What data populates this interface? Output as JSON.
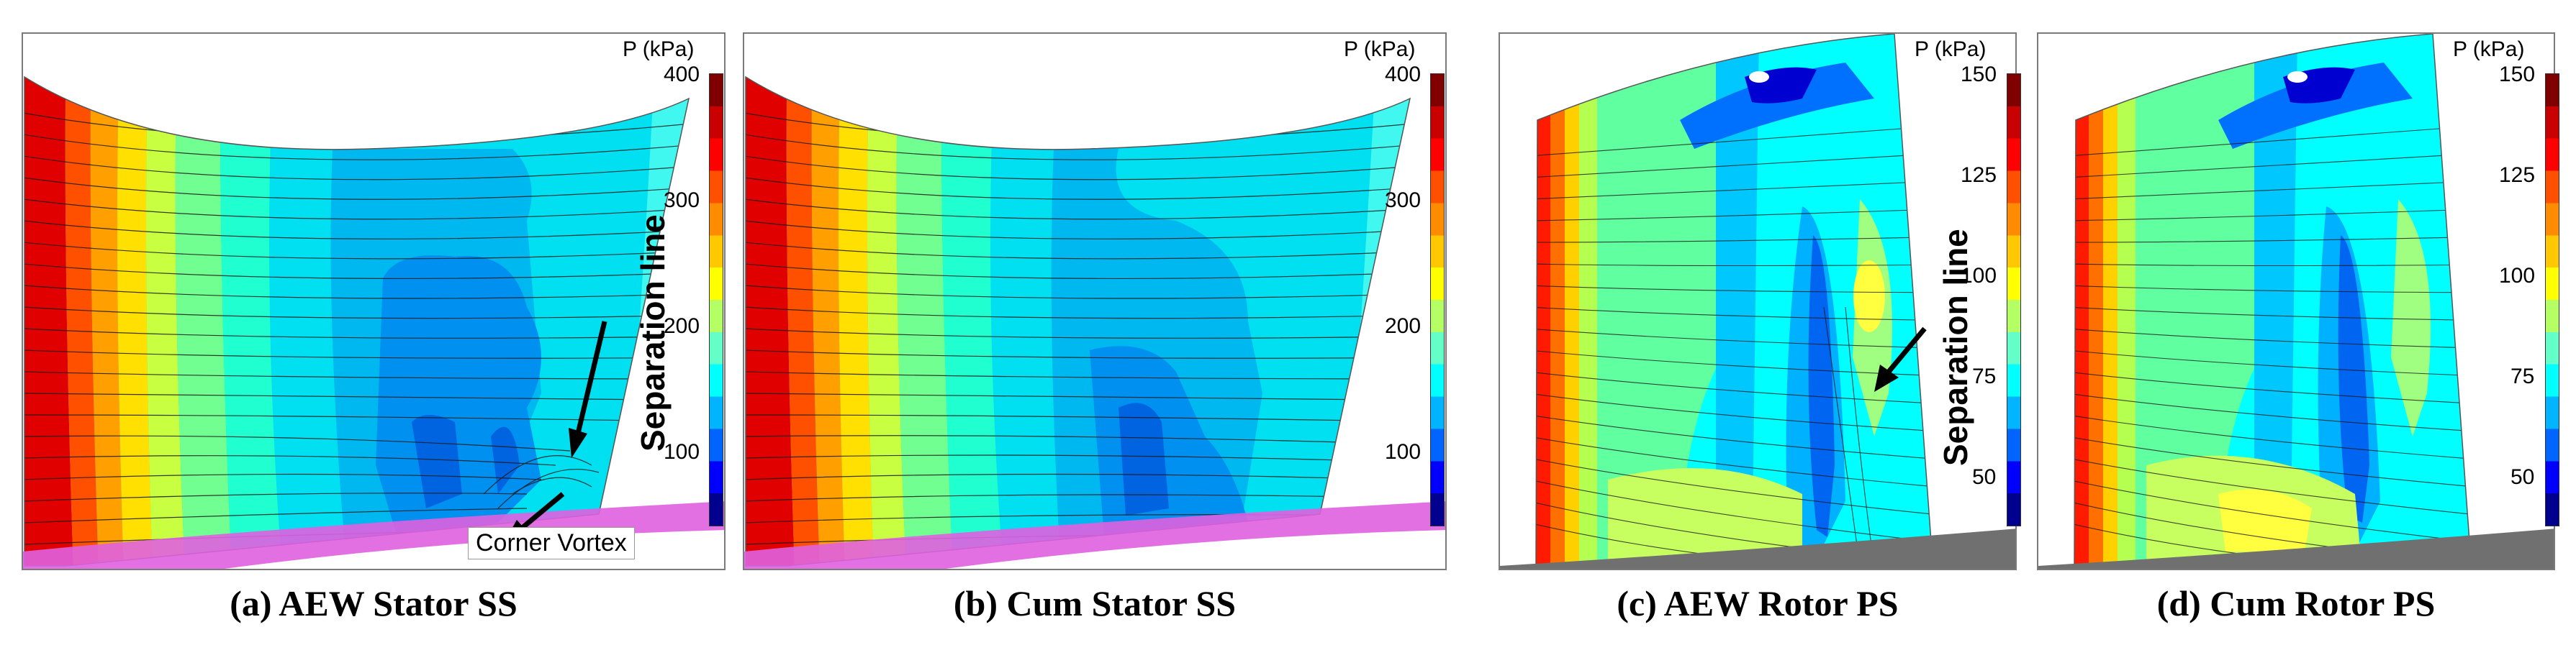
{
  "colorbar_colors": [
    "#00008f",
    "#0000ff",
    "#0064ff",
    "#00b4ff",
    "#00ffff",
    "#64ffc8",
    "#b4ff64",
    "#ffff00",
    "#ffc800",
    "#ff8c00",
    "#ff5000",
    "#ff0000",
    "#c80000",
    "#800000"
  ],
  "panels": [
    {
      "id": "a",
      "caption": "(a) AEW Stator SS",
      "colorbar_title": "P (kPa)",
      "ticks": [
        "400",
        "300",
        "200",
        "100"
      ],
      "annotations": {
        "separation": "Separation line",
        "vortex": "Corner Vortex"
      }
    },
    {
      "id": "b",
      "caption": "(b) Cum Stator SS",
      "colorbar_title": "P (kPa)",
      "ticks": [
        "400",
        "300",
        "200",
        "100"
      ]
    },
    {
      "id": "c",
      "caption": "(c) AEW Rotor PS",
      "colorbar_title": "P (kPa)",
      "ticks": [
        "150",
        "125",
        "100",
        "75",
        "50"
      ],
      "annotations": {
        "separation": "Separation line"
      }
    },
    {
      "id": "d",
      "caption": "(d) Cum Rotor PS",
      "colorbar_title": "P (kPa)",
      "ticks": [
        "150",
        "125",
        "100",
        "75",
        "50"
      ]
    }
  ]
}
